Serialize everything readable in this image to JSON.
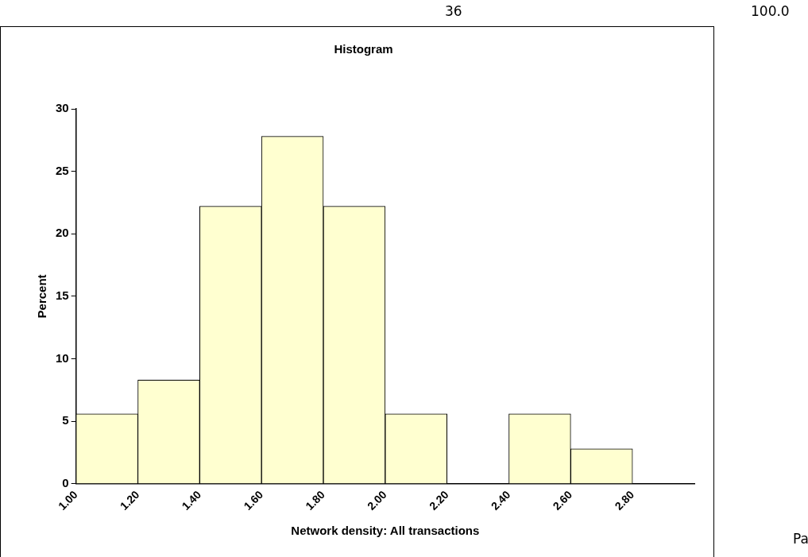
{
  "chart_data": {
    "type": "histogram",
    "title": "Histogram",
    "xlabel": "Network density: All transactions",
    "ylabel": "Percent",
    "bins": [
      1.0,
      1.2,
      1.4,
      1.6,
      1.8,
      2.0,
      2.2,
      2.4,
      2.6,
      2.8,
      3.0
    ],
    "values": [
      5.6,
      8.3,
      22.2,
      27.8,
      22.2,
      5.6,
      0,
      5.6,
      2.8,
      0
    ],
    "color": "#ffffd0",
    "xlim": [
      1.0,
      3.0
    ],
    "xticks": [
      {
        "value": 1.0,
        "label": "1.00"
      },
      {
        "value": 1.2,
        "label": "1.20"
      },
      {
        "value": 1.4,
        "label": "1.40"
      },
      {
        "value": 1.6,
        "label": "1.60"
      },
      {
        "value": 1.8,
        "label": "1.80"
      },
      {
        "value": 2.0,
        "label": "2.00"
      },
      {
        "value": 2.2,
        "label": "2.20"
      },
      {
        "value": 2.4,
        "label": "2.40"
      },
      {
        "value": 2.6,
        "label": "2.60"
      },
      {
        "value": 2.8,
        "label": "2.80"
      }
    ],
    "ylim": [
      0,
      30
    ],
    "yticks": [
      0,
      5,
      10,
      15,
      20,
      25,
      30
    ],
    "annotations": [
      "36",
      "100.0",
      "Pa"
    ]
  }
}
